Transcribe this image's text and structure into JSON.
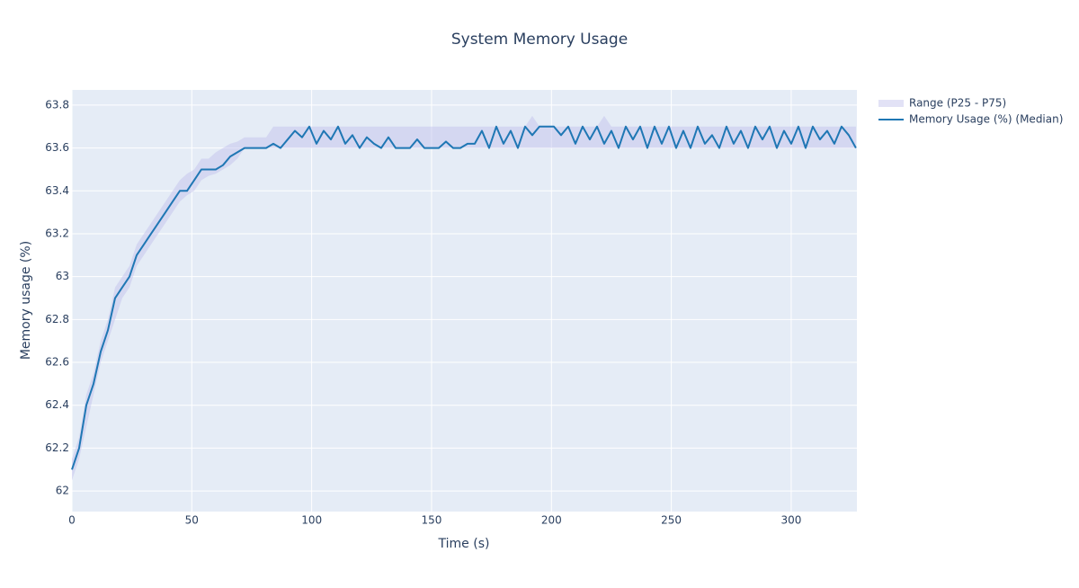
{
  "chart_data": {
    "type": "line",
    "title": "System Memory Usage",
    "x_label": "Time (s)",
    "y_label": "Memory usage (%)",
    "x": [
      0,
      3,
      6,
      9,
      12,
      15,
      18,
      21,
      24,
      27,
      30,
      33,
      36,
      39,
      42,
      45,
      48,
      51,
      54,
      57,
      60,
      63,
      66,
      69,
      72,
      75,
      78,
      81,
      84,
      87,
      90,
      93,
      96,
      99,
      102,
      105,
      108,
      111,
      114,
      117,
      120,
      123,
      126,
      129,
      132,
      135,
      138,
      141,
      144,
      147,
      150,
      153,
      156,
      159,
      162,
      165,
      168,
      171,
      174,
      177,
      180,
      183,
      186,
      189,
      192,
      195,
      198,
      201,
      204,
      207,
      210,
      213,
      216,
      219,
      222,
      225,
      228,
      231,
      234,
      237,
      240,
      243,
      246,
      249,
      252,
      255,
      258,
      261,
      264,
      267,
      270,
      273,
      276,
      279,
      282,
      285,
      288,
      291,
      294,
      297,
      300,
      303,
      306,
      309,
      312,
      315,
      318,
      321,
      324,
      327
    ],
    "series": [
      {
        "name": "Range (P25 - P75)",
        "color": "rgba(190,190,235,0.45)",
        "lower": [
          62.05,
          62.15,
          62.3,
          62.45,
          62.6,
          62.7,
          62.8,
          62.9,
          62.95,
          63.05,
          63.1,
          63.15,
          63.2,
          63.25,
          63.3,
          63.35,
          63.38,
          63.4,
          63.45,
          63.47,
          63.48,
          63.5,
          63.52,
          63.55,
          63.6,
          63.6,
          63.6,
          63.6,
          63.6,
          63.6,
          63.6,
          63.6,
          63.6,
          63.6,
          63.6,
          63.6,
          63.6,
          63.6,
          63.6,
          63.6,
          63.6,
          63.6,
          63.6,
          63.6,
          63.6,
          63.6,
          63.6,
          63.6,
          63.6,
          63.6,
          63.6,
          63.6,
          63.6,
          63.6,
          63.6,
          63.6,
          63.6,
          63.6,
          63.6,
          63.6,
          63.6,
          63.6,
          63.6,
          63.6,
          63.6,
          63.6,
          63.6,
          63.6,
          63.6,
          63.6,
          63.6,
          63.6,
          63.6,
          63.6,
          63.6,
          63.6,
          63.6,
          63.6,
          63.6,
          63.6,
          63.6,
          63.6,
          63.6,
          63.6,
          63.6,
          63.6,
          63.6,
          63.6,
          63.6,
          63.6,
          63.6,
          63.6,
          63.6,
          63.6,
          63.6,
          63.6,
          63.6,
          63.6,
          63.6,
          63.6,
          63.6,
          63.6,
          63.6,
          63.6,
          63.6,
          63.6,
          63.6,
          63.6,
          63.6,
          63.6
        ],
        "upper": [
          62.15,
          62.25,
          62.45,
          62.55,
          62.7,
          62.8,
          62.95,
          63.0,
          63.05,
          63.15,
          63.2,
          63.25,
          63.3,
          63.35,
          63.4,
          63.45,
          63.48,
          63.5,
          63.55,
          63.55,
          63.58,
          63.6,
          63.62,
          63.63,
          63.65,
          63.65,
          63.65,
          63.65,
          63.7,
          63.7,
          63.7,
          63.7,
          63.7,
          63.7,
          63.7,
          63.7,
          63.7,
          63.7,
          63.7,
          63.7,
          63.7,
          63.7,
          63.7,
          63.7,
          63.7,
          63.7,
          63.7,
          63.7,
          63.7,
          63.7,
          63.7,
          63.7,
          63.7,
          63.7,
          63.7,
          63.7,
          63.7,
          63.7,
          63.7,
          63.7,
          63.7,
          63.7,
          63.7,
          63.7,
          63.75,
          63.7,
          63.7,
          63.7,
          63.7,
          63.7,
          63.7,
          63.7,
          63.7,
          63.7,
          63.75,
          63.7,
          63.7,
          63.7,
          63.7,
          63.7,
          63.7,
          63.7,
          63.7,
          63.7,
          63.7,
          63.7,
          63.7,
          63.7,
          63.7,
          63.7,
          63.7,
          63.7,
          63.7,
          63.7,
          63.7,
          63.7,
          63.7,
          63.7,
          63.7,
          63.7,
          63.7,
          63.7,
          63.7,
          63.7,
          63.7,
          63.7,
          63.7,
          63.7,
          63.7,
          63.7
        ]
      },
      {
        "name": "Memory Usage (%) (Median)",
        "color": "#1f77b4",
        "values": [
          62.1,
          62.2,
          62.4,
          62.5,
          62.65,
          62.75,
          62.9,
          62.95,
          63.0,
          63.1,
          63.15,
          63.2,
          63.25,
          63.3,
          63.35,
          63.4,
          63.4,
          63.45,
          63.5,
          63.5,
          63.5,
          63.52,
          63.56,
          63.58,
          63.6,
          63.6,
          63.6,
          63.6,
          63.62,
          63.6,
          63.64,
          63.68,
          63.65,
          63.7,
          63.62,
          63.68,
          63.64,
          63.7,
          63.62,
          63.66,
          63.6,
          63.65,
          63.62,
          63.6,
          63.65,
          63.6,
          63.6,
          63.6,
          63.64,
          63.6,
          63.6,
          63.6,
          63.63,
          63.6,
          63.6,
          63.62,
          63.62,
          63.68,
          63.6,
          63.7,
          63.62,
          63.68,
          63.6,
          63.7,
          63.66,
          63.7,
          63.7,
          63.7,
          63.66,
          63.7,
          63.62,
          63.7,
          63.64,
          63.7,
          63.62,
          63.68,
          63.6,
          63.7,
          63.64,
          63.7,
          63.6,
          63.7,
          63.62,
          63.7,
          63.6,
          63.68,
          63.6,
          63.7,
          63.62,
          63.66,
          63.6,
          63.7,
          63.62,
          63.68,
          63.6,
          63.7,
          63.64,
          63.7,
          63.6,
          63.68,
          63.62,
          63.7,
          63.6,
          63.7,
          63.64,
          63.68,
          63.62,
          63.7,
          63.66,
          63.6
        ]
      }
    ],
    "xlim": [
      0,
      327.4
    ],
    "xticks": [
      0,
      50,
      100,
      150,
      200,
      250,
      300
    ],
    "ylim": [
      61.904,
      63.871
    ],
    "yticks": [
      62,
      62.2,
      62.4,
      62.6,
      62.8,
      63,
      63.2,
      63.4,
      63.6,
      63.8
    ],
    "grid": true,
    "legend": "right"
  }
}
